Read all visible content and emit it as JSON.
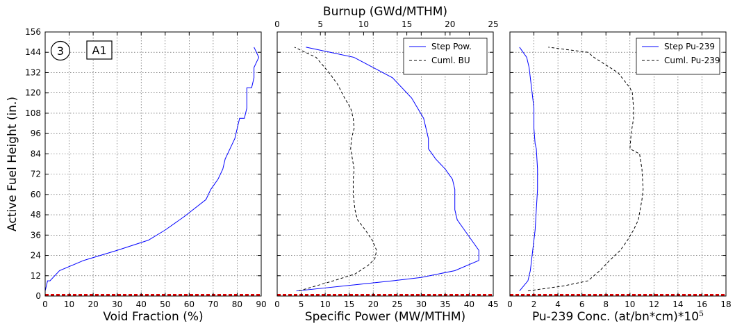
{
  "chart_data": [
    {
      "type": "line",
      "xlabel": "Void Fraction (%)",
      "ylabel": "Active Fuel Height (in.)",
      "xlim": [
        0,
        90
      ],
      "ylim": [
        0,
        156
      ],
      "xticks": [
        0,
        10,
        20,
        30,
        40,
        50,
        60,
        70,
        80,
        90
      ],
      "yticks": [
        0,
        12,
        24,
        36,
        48,
        60,
        72,
        84,
        96,
        108,
        120,
        132,
        144,
        156
      ],
      "grid": true,
      "annotations": [
        "3",
        "A1"
      ],
      "series": [
        {
          "color": "#0000ff",
          "style": "solid",
          "x": [
            0,
            1,
            2,
            6,
            16,
            30,
            43,
            50,
            58,
            67,
            69,
            72,
            74,
            75,
            77,
            79,
            80,
            81,
            83,
            84,
            84,
            84,
            86,
            87,
            87,
            89,
            87
          ],
          "y": [
            3,
            9,
            9,
            15,
            21,
            27,
            33,
            39,
            47,
            57,
            63,
            69,
            75,
            81,
            87,
            93,
            99,
            105,
            105,
            111,
            117,
            123,
            123,
            129,
            135,
            141,
            147
          ]
        }
      ]
    },
    {
      "type": "line",
      "xlabel": "Specific Power (MW/MTHM)",
      "x2label": "Burnup (GWd/MTHM)",
      "xlim": [
        0,
        45
      ],
      "x2lim": [
        0,
        25
      ],
      "ylim": [
        0,
        156
      ],
      "xticks": [
        0,
        5,
        10,
        15,
        20,
        25,
        30,
        35,
        40,
        45
      ],
      "x2ticks": [
        0,
        5,
        10,
        15,
        20,
        25
      ],
      "grid": true,
      "legend": "top-right",
      "series": [
        {
          "name": "Step Pow.",
          "color": "#0000ff",
          "style": "solid",
          "axis": "bottom",
          "x": [
            4,
            24,
            30,
            37,
            42,
            42,
            39,
            37.5,
            37,
            37,
            36.5,
            35,
            33,
            31.5,
            31.5,
            30.5,
            28,
            24,
            16,
            6
          ],
          "y": [
            3,
            9,
            11,
            15,
            21,
            27,
            39,
            45,
            51,
            63,
            69,
            75,
            81,
            87,
            93,
            105,
            117,
            129,
            141,
            147
          ]
        },
        {
          "name": "Cuml. BU",
          "color": "#000000",
          "style": "dashed",
          "axis": "top",
          "x": [
            2.5,
            6.5,
            9,
            10.5,
            11.3,
            11.5,
            11,
            10.2,
            9.3,
            9,
            8.8,
            8.8,
            8.9,
            8.7,
            8.5,
            8.6,
            8.9,
            8.8,
            8.5,
            7.8,
            7,
            6,
            4.5,
            2
          ],
          "y": [
            3,
            9,
            13,
            18,
            22,
            27,
            33,
            39,
            45,
            51,
            60,
            69,
            75,
            81,
            87,
            93,
            99,
            105,
            111,
            117,
            125,
            132,
            141,
            147
          ]
        }
      ]
    },
    {
      "type": "line",
      "xlabel": "Pu-239 Conc. (at/bn*cm)*10",
      "xlabel_exp": "5",
      "xlim": [
        0,
        18
      ],
      "ylim": [
        0,
        156
      ],
      "xticks": [
        0,
        2,
        4,
        6,
        8,
        10,
        12,
        14,
        16,
        18
      ],
      "grid": true,
      "legend": "top-right",
      "series": [
        {
          "name": "Step Pu-239",
          "color": "#0000ff",
          "style": "solid",
          "x": [
            0.8,
            1.5,
            1.7,
            1.8,
            1.9,
            2.0,
            2.1,
            2.2,
            2.3,
            2.3,
            2.2,
            2.1,
            2.0,
            2.0,
            1.9,
            1.8,
            1.7,
            1.6,
            1.4,
            0.8
          ],
          "y": [
            3,
            9,
            15,
            21,
            27,
            33,
            39,
            51,
            63,
            75,
            87,
            90,
            99,
            111,
            117,
            123,
            129,
            135,
            141,
            147
          ]
        },
        {
          "name": "Cuml. Pu-239",
          "color": "#000000",
          "style": "dashed",
          "x": [
            1.5,
            4.5,
            6.5,
            7.5,
            8.3,
            9.2,
            9.8,
            10.3,
            10.7,
            11.0,
            11.1,
            11.0,
            10.8,
            10.0,
            10.1,
            10.3,
            10.3,
            10.2,
            10.0,
            9.0,
            7.0,
            6.5,
            3.2
          ],
          "y": [
            3,
            6,
            9,
            15,
            21,
            27,
            33,
            39,
            45,
            57,
            63,
            75,
            84,
            87,
            96,
            105,
            111,
            120,
            123,
            132,
            141,
            144,
            147
          ]
        }
      ]
    }
  ]
}
